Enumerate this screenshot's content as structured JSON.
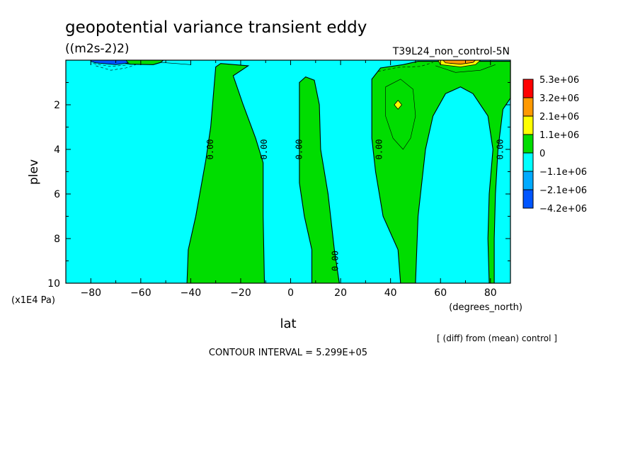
{
  "chart_data": {
    "type": "heatmap",
    "title": "geopotential variance transient eddy",
    "units": "((m2s-2)2)",
    "run_label": "T39L24_non_control-5N",
    "xlabel": "lat",
    "xunits": "(degrees_north)",
    "ylabel": "plev",
    "yunits": "(x1E4 Pa)",
    "xlim": [
      -90,
      88
    ],
    "ylim": [
      10,
      0
    ],
    "x_ticks": [
      -80,
      -60,
      -40,
      -20,
      0,
      20,
      40,
      60,
      80
    ],
    "x_tick_labels": [
      "−80",
      "−60",
      "−40",
      "−20",
      "0",
      "20",
      "40",
      "60",
      "80"
    ],
    "y_ticks": [
      2,
      4,
      6,
      8,
      10
    ],
    "y_tick_labels": [
      "2",
      "4",
      "6",
      "8",
      "10"
    ],
    "contour_interval_text": "CONTOUR INTERVAL = 5.299E+05",
    "footnote": "[ (diff) from (mean) control ]",
    "zero_contour_label": "0.00",
    "colorbar": {
      "labels": [
        "5.3e+06",
        "3.2e+06",
        "2.1e+06",
        "1.1e+06",
        "0",
        "−1.1e+06",
        "−2.1e+06",
        "−4.2e+06"
      ],
      "colors": [
        "#ff0000",
        "#ff9900",
        "#ffff00",
        "#00dd00",
        "#00ffff",
        "#00aaff",
        "#0055ff"
      ]
    },
    "background_color": "#00ffff",
    "positive_color": "#00dd00",
    "positive_regions_lat_plev": [
      {
        "name": "band-1",
        "points": [
          [
            -41.5,
            10
          ],
          [
            -41,
            8.5
          ],
          [
            -38,
            7
          ],
          [
            -34,
            4.5
          ],
          [
            -32,
            3
          ],
          [
            -30,
            0.3
          ],
          [
            -28,
            0.15
          ],
          [
            -17,
            0.25
          ],
          [
            -23,
            0.7
          ],
          [
            -19,
            2
          ],
          [
            -14,
            3.5
          ],
          [
            -11,
            4.6
          ],
          [
            -11,
            7
          ],
          [
            -10.5,
            10
          ]
        ]
      },
      {
        "name": "band-2",
        "points": [
          [
            8.5,
            10
          ],
          [
            8.5,
            8.5
          ],
          [
            5.5,
            7
          ],
          [
            3.5,
            5.5
          ],
          [
            3.5,
            1
          ],
          [
            6,
            0.75
          ],
          [
            9.5,
            0.9
          ],
          [
            11.5,
            2
          ],
          [
            12,
            4
          ],
          [
            15,
            6
          ],
          [
            17.5,
            8.5
          ],
          [
            19.5,
            10
          ]
        ]
      },
      {
        "name": "band-3",
        "points": [
          [
            44,
            10
          ],
          [
            43,
            8.5
          ],
          [
            37,
            7
          ],
          [
            34,
            5
          ],
          [
            32.5,
            3.5
          ],
          [
            32.5,
            0.85
          ],
          [
            36,
            0.35
          ],
          [
            45,
            0.2
          ],
          [
            51,
            0.05
          ],
          [
            88,
            0.05
          ],
          [
            88,
            1.7
          ],
          [
            85,
            2.2
          ],
          [
            83,
            4
          ],
          [
            82,
            6
          ],
          [
            81.5,
            8
          ],
          [
            81.5,
            10
          ],
          [
            79.5,
            10
          ],
          [
            79,
            8
          ],
          [
            79.5,
            6
          ],
          [
            81,
            4
          ],
          [
            79,
            2.5
          ],
          [
            73,
            1.5
          ],
          [
            68,
            1.2
          ],
          [
            62,
            1.5
          ],
          [
            57,
            2.5
          ],
          [
            54,
            4
          ],
          [
            51,
            7
          ],
          [
            50,
            10
          ]
        ]
      },
      {
        "name": "band-4",
        "points": [
          [
            -67,
            0
          ],
          [
            -66,
            0.15
          ],
          [
            -64,
            0.18
          ],
          [
            -55,
            0.2
          ],
          [
            -52,
            0.1
          ],
          [
            -51,
            0
          ]
        ]
      }
    ],
    "anomaly_patches_lat_plev": [
      {
        "name": "patch-neg",
        "color": "#0055ff",
        "points": [
          [
            -80,
            0.05
          ],
          [
            -78,
            0.12
          ],
          [
            -70,
            0.2
          ],
          [
            -65,
            0.12
          ],
          [
            -66,
            0
          ],
          [
            -80,
            0
          ]
        ]
      },
      {
        "name": "patch-pos",
        "color": "#ffff00",
        "points": [
          [
            43,
            1.8
          ],
          [
            44.5,
            2
          ],
          [
            43,
            2.2
          ],
          [
            41.5,
            2
          ]
        ]
      },
      {
        "name": "patch-pos-top",
        "color": "#ffff00",
        "points": [
          [
            59,
            0
          ],
          [
            60,
            0.2
          ],
          [
            68,
            0.3
          ],
          [
            74,
            0.2
          ],
          [
            76,
            0
          ]
        ]
      },
      {
        "name": "patch-pos-top-2",
        "color": "#ff9900",
        "points": [
          [
            61,
            0
          ],
          [
            62,
            0.12
          ],
          [
            68,
            0.18
          ],
          [
            73,
            0.1
          ],
          [
            74,
            0
          ]
        ]
      }
    ],
    "thin_contours_lat_plev": [
      {
        "name": "contour-1",
        "dashed": false,
        "points": [
          [
            38,
            1.2
          ],
          [
            44,
            0.85
          ],
          [
            49,
            1.3
          ],
          [
            50,
            2.5
          ],
          [
            48,
            3.5
          ],
          [
            45,
            4
          ],
          [
            41,
            3.5
          ],
          [
            38,
            2.5
          ],
          [
            38,
            1.2
          ]
        ]
      },
      {
        "name": "contour-2",
        "dashed": false,
        "points": [
          [
            -52,
            0.1
          ],
          [
            -46,
            0.15
          ],
          [
            -40,
            0.2
          ]
        ]
      },
      {
        "name": "contour-3",
        "dashed": true,
        "points": [
          [
            -78,
            0.25
          ],
          [
            -72,
            0.45
          ],
          [
            -66,
            0.35
          ],
          [
            -62,
            0.2
          ]
        ]
      },
      {
        "name": "contour-4",
        "dashed": true,
        "points": [
          [
            -79,
            0.15
          ],
          [
            -72,
            0.28
          ],
          [
            -66,
            0.22
          ]
        ]
      },
      {
        "name": "contour-5",
        "dashed": true,
        "points": [
          [
            35,
            0.5
          ],
          [
            43,
            0.32
          ],
          [
            52,
            0.28
          ],
          [
            57,
            0.1
          ]
        ]
      },
      {
        "name": "contour-6",
        "dashed": false,
        "points": [
          [
            58,
            0.25
          ],
          [
            66,
            0.55
          ],
          [
            76,
            0.45
          ],
          [
            82,
            0.2
          ]
        ]
      }
    ],
    "zero_label_positions_lat_plev": [
      [
        -32,
        4
      ],
      [
        -10.5,
        4
      ],
      [
        3.5,
        4
      ],
      [
        35.5,
        4
      ],
      [
        84,
        4
      ],
      [
        18,
        9
      ]
    ]
  }
}
